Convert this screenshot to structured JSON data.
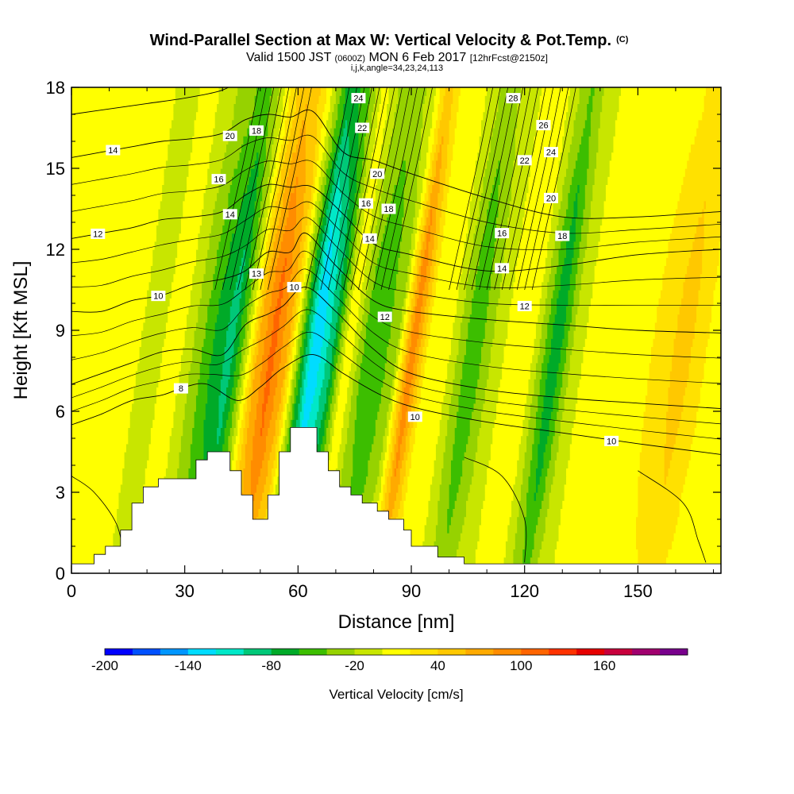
{
  "chart_data": {
    "type": "heatmap",
    "title": "Wind-Parallel Section at Max W: Vertical Velocity & Pot.Temp.",
    "title_mark": "(C)",
    "subtitle": {
      "valid": "Valid 1500 JST",
      "utc": "(0600Z)",
      "date": "MON 6 Feb 2017",
      "forecast": "[12hrFcst@2150z]"
    },
    "subtitle2": "i,j,k,angle=34,23,24,113",
    "xlabel": "Distance [nm]",
    "ylabel": "Height [Kft MSL]",
    "xlim": [
      0,
      172
    ],
    "ylim": [
      0,
      18
    ],
    "x_ticks": [
      0,
      30,
      60,
      90,
      120,
      150
    ],
    "x_tick_labels": [
      "0",
      "30",
      "60",
      "90",
      "120",
      "150"
    ],
    "y_ticks": [
      0,
      3,
      6,
      9,
      12,
      15,
      18
    ],
    "y_tick_labels": [
      "0",
      "3",
      "6",
      "9",
      "12",
      "15",
      "18"
    ],
    "colorbar": {
      "label": "Vertical Velocity [cm/s]",
      "levels": [
        -200,
        -180,
        -160,
        -140,
        -120,
        -100,
        -80,
        -60,
        -40,
        -20,
        0,
        20,
        40,
        60,
        80,
        100,
        120,
        140,
        160,
        180,
        200
      ],
      "tick_values": [
        -200,
        -140,
        -80,
        -20,
        40,
        100,
        160
      ],
      "tick_labels": [
        "-200",
        "-140",
        "-80",
        "-20",
        "40",
        "100",
        "160"
      ],
      "colors": [
        "#0000ff",
        "#0050ff",
        "#0096ff",
        "#00dcff",
        "#00e8c8",
        "#00c878",
        "#00aa28",
        "#3cbe00",
        "#96d200",
        "#c8e600",
        "#ffff00",
        "#ffe100",
        "#ffc800",
        "#ffaa00",
        "#ff8c00",
        "#ff6400",
        "#ff3200",
        "#e60000",
        "#c8003c",
        "#a0006e",
        "#78008c"
      ]
    },
    "bands": [
      {
        "x": 0,
        "w": 15
      },
      {
        "x": 8,
        "w": 6,
        "sw": 1
      },
      {
        "x": 13,
        "w": 13
      },
      {
        "x": 18,
        "w": -10
      },
      {
        "x": 26,
        "w": 10
      },
      {
        "x": 35,
        "w": -60,
        "sw": 5
      },
      {
        "x": 40,
        "w": -90,
        "sw": 3
      },
      {
        "x": 43,
        "w": -40
      },
      {
        "x": 47,
        "w": 60
      },
      {
        "x": 51,
        "w": 110,
        "sw": 2.5
      },
      {
        "x": 55,
        "w": 60
      },
      {
        "x": 59,
        "w": -60,
        "sw": 2
      },
      {
        "x": 62,
        "w": -140,
        "sw": 2.5
      },
      {
        "x": 64,
        "w": -120
      },
      {
        "x": 67,
        "w": -80
      },
      {
        "x": 71,
        "w": 20
      },
      {
        "x": 75,
        "w": -40
      },
      {
        "x": 79,
        "w": -60,
        "sw": 5
      },
      {
        "x": 84,
        "w": -20
      },
      {
        "x": 88,
        "w": 100,
        "sw": 2.5
      },
      {
        "x": 92,
        "w": 20
      },
      {
        "x": 98,
        "w": 0
      },
      {
        "x": 104,
        "w": -60,
        "sw": 6
      },
      {
        "x": 109,
        "w": -20
      },
      {
        "x": 116,
        "w": 20
      },
      {
        "x": 120,
        "w": 0
      },
      {
        "x": 126,
        "w": -80,
        "sw": 9
      },
      {
        "x": 131,
        "w": -10
      },
      {
        "x": 136,
        "w": 10
      },
      {
        "x": 142,
        "w": 0
      },
      {
        "x": 150,
        "w": 15
      },
      {
        "x": 160,
        "w": 50
      },
      {
        "x": 166,
        "w": 20
      },
      {
        "x": 172,
        "w": 10
      }
    ],
    "terrain": [
      [
        0,
        0
      ],
      [
        0,
        0.35
      ],
      [
        6,
        0.35
      ],
      [
        6,
        0.7
      ],
      [
        9,
        0.7
      ],
      [
        9,
        1
      ],
      [
        13,
        1
      ],
      [
        13,
        1.6
      ],
      [
        16,
        1.6
      ],
      [
        16,
        2.6
      ],
      [
        19,
        2.6
      ],
      [
        19,
        3.2
      ],
      [
        23,
        3.2
      ],
      [
        23,
        3.5
      ],
      [
        33,
        3.5
      ],
      [
        33,
        4.2
      ],
      [
        36,
        4.2
      ],
      [
        36,
        4.5
      ],
      [
        42,
        4.5
      ],
      [
        42,
        3.8
      ],
      [
        45,
        3.8
      ],
      [
        45,
        2.9
      ],
      [
        48,
        2.9
      ],
      [
        48,
        2
      ],
      [
        52,
        2
      ],
      [
        52,
        2.9
      ],
      [
        55,
        2.9
      ],
      [
        55,
        4.5
      ],
      [
        58,
        4.5
      ],
      [
        58,
        5.4
      ],
      [
        65,
        5.4
      ],
      [
        65,
        4.5
      ],
      [
        68,
        4.5
      ],
      [
        68,
        3.8
      ],
      [
        71,
        3.8
      ],
      [
        71,
        3.2
      ],
      [
        74,
        3.2
      ],
      [
        74,
        2.9
      ],
      [
        77,
        2.9
      ],
      [
        77,
        2.6
      ],
      [
        81,
        2.6
      ],
      [
        81,
        2.3
      ],
      [
        84,
        2.3
      ],
      [
        84,
        2
      ],
      [
        88,
        2
      ],
      [
        88,
        1.6
      ],
      [
        90,
        1.6
      ],
      [
        90,
        1
      ],
      [
        97,
        1
      ],
      [
        97,
        0.6
      ],
      [
        104,
        0.6
      ],
      [
        104,
        0.35
      ],
      [
        172,
        0.35
      ],
      [
        172,
        0
      ]
    ],
    "isentropes": [
      {
        "label": "8",
        "label_x": 29,
        "pts": [
          [
            0,
            5.5
          ],
          [
            8,
            5.9
          ],
          [
            16,
            6.4
          ],
          [
            24,
            6.6
          ],
          [
            30,
            6.9
          ],
          [
            36,
            7
          ],
          [
            44,
            6.4
          ],
          [
            50,
            6.9
          ],
          [
            56,
            7.6
          ],
          [
            64,
            8.1
          ],
          [
            72,
            7.4
          ],
          [
            82,
            6.6
          ],
          [
            92,
            6.1
          ],
          [
            110,
            5.6
          ],
          [
            130,
            5.2
          ],
          [
            150,
            4.8
          ],
          [
            172,
            4.4
          ]
        ]
      },
      {
        "label": "",
        "pts": [
          [
            0,
            7
          ],
          [
            8,
            7.4
          ],
          [
            16,
            7.8
          ],
          [
            24,
            8.2
          ],
          [
            32,
            8.3
          ],
          [
            40,
            8.1
          ],
          [
            46,
            9.2
          ],
          [
            52,
            9.6
          ],
          [
            56,
            9.9
          ],
          [
            62,
            10.6
          ],
          [
            70,
            9.7
          ],
          [
            80,
            8.3
          ],
          [
            90,
            7.4
          ],
          [
            110,
            6.8
          ],
          [
            130,
            6.5
          ],
          [
            150,
            6.3
          ],
          [
            172,
            6.1
          ]
        ]
      },
      {
        "label": "10",
        "label_x": 23,
        "pts": [
          [
            0,
            9.7
          ],
          [
            8,
            9.7
          ],
          [
            16,
            10.1
          ],
          [
            24,
            10.3
          ],
          [
            32,
            10.7
          ],
          [
            40,
            10.9
          ],
          [
            46,
            11.2
          ],
          [
            52,
            11.9
          ],
          [
            58,
            11.9
          ],
          [
            62,
            12.6
          ],
          [
            70,
            11.4
          ],
          [
            80,
            10.1
          ],
          [
            90,
            9.7
          ],
          [
            110,
            9.4
          ],
          [
            130,
            9.2
          ],
          [
            150,
            9
          ],
          [
            172,
            8.9
          ]
        ]
      },
      {
        "label": "12",
        "label_x": 7,
        "pts": [
          [
            0,
            12.4
          ],
          [
            8,
            12.6
          ],
          [
            16,
            12.8
          ],
          [
            24,
            13.1
          ],
          [
            32,
            13.2
          ],
          [
            40,
            13.4
          ],
          [
            46,
            14
          ],
          [
            52,
            14.4
          ],
          [
            58,
            14.3
          ],
          [
            64,
            14.3
          ],
          [
            72,
            13.3
          ],
          [
            80,
            12.2
          ],
          [
            90,
            11.8
          ],
          [
            110,
            11.2
          ],
          [
            130,
            11.4
          ],
          [
            150,
            11.8
          ],
          [
            172,
            12
          ]
        ]
      },
      {
        "label": "14",
        "label_x": 11,
        "pts": [
          [
            0,
            15.4
          ],
          [
            8,
            15.6
          ],
          [
            16,
            15.8
          ],
          [
            24,
            16
          ],
          [
            32,
            16.1
          ],
          [
            40,
            16.3
          ],
          [
            46,
            16.8
          ],
          [
            52,
            17
          ],
          [
            58,
            16.9
          ],
          [
            64,
            17.1
          ],
          [
            72,
            15.6
          ],
          [
            80,
            15.3
          ],
          [
            90,
            14.8
          ],
          [
            110,
            13.9
          ],
          [
            130,
            13.2
          ],
          [
            150,
            13.2
          ],
          [
            172,
            13.4
          ]
        ]
      },
      {
        "label": "",
        "pts": [
          [
            0,
            17
          ],
          [
            10,
            17.2
          ],
          [
            20,
            17.4
          ],
          [
            30,
            17.6
          ],
          [
            40,
            17.9
          ],
          [
            46,
            18.4
          ]
        ]
      }
    ],
    "contour_labels": [
      {
        "text": "20",
        "x": 42,
        "y": 16.2
      },
      {
        "text": "18",
        "x": 49,
        "y": 16.4
      },
      {
        "text": "16",
        "x": 39,
        "y": 14.6
      },
      {
        "text": "14",
        "x": 42,
        "y": 13.3
      },
      {
        "text": "13",
        "x": 49,
        "y": 11.1
      },
      {
        "text": "10",
        "x": 59,
        "y": 10.6
      },
      {
        "text": "24",
        "x": 76,
        "y": 17.6
      },
      {
        "text": "22",
        "x": 77,
        "y": 16.5
      },
      {
        "text": "20",
        "x": 81,
        "y": 14.8
      },
      {
        "text": "16",
        "x": 78,
        "y": 13.7
      },
      {
        "text": "18",
        "x": 84,
        "y": 13.5
      },
      {
        "text": "14",
        "x": 79,
        "y": 12.4
      },
      {
        "text": "12",
        "x": 83,
        "y": 9.5
      },
      {
        "text": "10",
        "x": 91,
        "y": 5.8
      },
      {
        "text": "28",
        "x": 117,
        "y": 17.6
      },
      {
        "text": "26",
        "x": 125,
        "y": 16.6
      },
      {
        "text": "24",
        "x": 127,
        "y": 15.6
      },
      {
        "text": "22",
        "x": 120,
        "y": 15.3
      },
      {
        "text": "20",
        "x": 127,
        "y": 13.9
      },
      {
        "text": "18",
        "x": 130,
        "y": 12.5
      },
      {
        "text": "16",
        "x": 114,
        "y": 12.6
      },
      {
        "text": "14",
        "x": 114,
        "y": 11.3
      },
      {
        "text": "12",
        "x": 120,
        "y": 9.9
      },
      {
        "text": "10",
        "x": 143,
        "y": 4.9
      }
    ]
  }
}
